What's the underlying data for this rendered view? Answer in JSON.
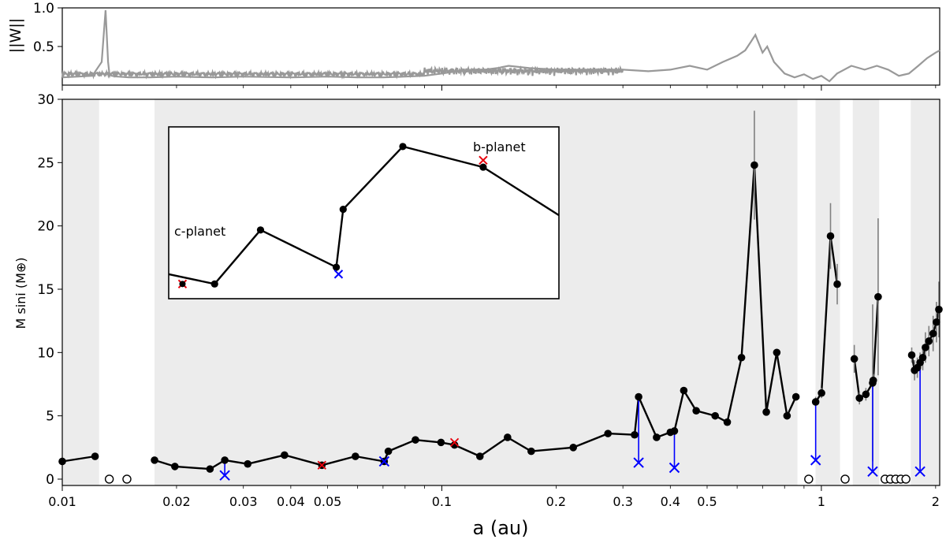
{
  "chart_data": [
    {
      "id": "window-function",
      "type": "line",
      "ylabel": "||W||",
      "ylim": [
        0,
        1.0
      ],
      "yticks": [
        0.5,
        1.0
      ],
      "ytick_labels": [
        "0.5",
        "1.0"
      ],
      "xscale": "log",
      "xlim": [
        0.01,
        2.05
      ],
      "line_color": "#999999",
      "series": [
        {
          "x": [
            0.01,
            0.011,
            0.012,
            0.0127,
            0.013,
            0.0132,
            0.0133,
            0.0135,
            0.014,
            0.015,
            0.017,
            0.02,
            0.025,
            0.03,
            0.04,
            0.05,
            0.06,
            0.07,
            0.08,
            0.09,
            0.1,
            0.11,
            0.12,
            0.13,
            0.14,
            0.15,
            0.17,
            0.2,
            0.25,
            0.3,
            0.35,
            0.4,
            0.45,
            0.5,
            0.55,
            0.6,
            0.63,
            0.65,
            0.67,
            0.7,
            0.72,
            0.75,
            0.8,
            0.85,
            0.9,
            0.95,
            1.0,
            1.05,
            1.1,
            1.2,
            1.3,
            1.4,
            1.5,
            1.6,
            1.7,
            1.8,
            1.9,
            2.0,
            2.05
          ],
          "y": [
            0.1,
            0.11,
            0.12,
            0.3,
            0.97,
            0.3,
            0.16,
            0.12,
            0.11,
            0.1,
            0.1,
            0.11,
            0.1,
            0.11,
            0.1,
            0.11,
            0.1,
            0.1,
            0.11,
            0.12,
            0.15,
            0.18,
            0.2,
            0.2,
            0.22,
            0.25,
            0.22,
            0.2,
            0.2,
            0.2,
            0.18,
            0.2,
            0.25,
            0.2,
            0.3,
            0.38,
            0.45,
            0.55,
            0.65,
            0.42,
            0.5,
            0.3,
            0.15,
            0.1,
            0.14,
            0.08,
            0.12,
            0.05,
            0.15,
            0.25,
            0.2,
            0.25,
            0.2,
            0.12,
            0.15,
            0.25,
            0.35,
            0.42,
            0.45
          ]
        }
      ]
    },
    {
      "id": "mass-vs-semimajor-axis",
      "type": "line",
      "xlabel": "a (au)",
      "ylabel": "M sini (M⊕)",
      "xscale": "log",
      "xlim": [
        0.01,
        2.05
      ],
      "ylim": [
        -0.5,
        30
      ],
      "yticks": [
        0,
        5,
        10,
        15,
        20,
        25,
        30
      ],
      "ytick_labels": [
        "0",
        "5",
        "10",
        "15",
        "20",
        "25",
        "30"
      ],
      "xticks": [
        0.01,
        0.02,
        0.03,
        0.04,
        0.05,
        0.1,
        0.2,
        0.3,
        0.4,
        0.5,
        1,
        2
      ],
      "xtick_labels": [
        "0.01",
        "0.02",
        "0.03",
        "0.04",
        "0.05",
        "0.1",
        "0.2",
        "0.3",
        "0.4",
        "0.5",
        "1",
        "2"
      ],
      "shaded_regions": [
        [
          0.01,
          0.0125
        ],
        [
          0.0175,
          0.865
        ],
        [
          0.965,
          1.12
        ],
        [
          1.21,
          1.42
        ],
        [
          1.72,
          2.05
        ]
      ],
      "shade_color": "#ececec",
      "segments": [
        {
          "x": [
            0.01,
            0.0122
          ],
          "y": [
            1.4,
            1.8
          ],
          "yerr": [
            0.1,
            0.1
          ]
        },
        {
          "x": [
            0.0175,
            0.0198,
            0.0245,
            0.0268,
            0.0308,
            0.0385,
            0.0483,
            0.0592,
            0.0705,
            0.0723,
            0.0852,
            0.0995,
            0.108,
            0.126,
            0.149,
            0.172,
            0.222,
            0.274,
            0.322,
            0.33,
            0.368,
            0.4,
            0.41,
            0.434,
            0.468,
            0.525,
            0.565,
            0.616,
            0.666,
            0.716,
            0.763,
            0.812,
            0.857
          ],
          "y": [
            1.5,
            1.0,
            0.8,
            1.5,
            1.2,
            1.9,
            1.1,
            1.8,
            1.4,
            2.2,
            3.1,
            2.9,
            2.7,
            1.8,
            3.3,
            2.2,
            2.5,
            3.6,
            3.5,
            6.5,
            3.3,
            3.7,
            3.8,
            7.0,
            5.4,
            5.0,
            4.5,
            9.6,
            24.8,
            5.3,
            10.0,
            5.0,
            6.5
          ],
          "yerr": [
            0.1,
            0.1,
            0.1,
            0.1,
            0.1,
            0.1,
            0.1,
            0.1,
            0.1,
            0.1,
            0.1,
            0.1,
            0.1,
            0.1,
            0.1,
            0.1,
            0.1,
            0.1,
            0.1,
            0.2,
            0.1,
            0.1,
            0.2,
            0.2,
            0.2,
            0.2,
            0.2,
            0.3,
            4.3,
            0.2,
            0.3,
            0.2,
            0.3
          ]
        },
        {
          "x": [
            0.966,
            1.001,
            1.057,
            1.101
          ],
          "y": [
            6.1,
            6.8,
            19.2,
            15.4
          ],
          "yerr": [
            0.4,
            0.4,
            2.6,
            1.6
          ]
        },
        {
          "x": [
            1.221,
            1.26,
            1.31,
            1.365,
            1.37,
            1.411
          ],
          "y": [
            9.5,
            6.4,
            6.7,
            7.6,
            7.8,
            14.4
          ],
          "yerr": [
            1.1,
            0.5,
            0.5,
            6.2,
            0.5,
            6.2
          ]
        },
        {
          "x": [
            1.73,
            1.76,
            1.79,
            1.82,
            1.85,
            1.88,
            1.92,
            1.97,
            2.01,
            2.04
          ],
          "y": [
            9.8,
            8.6,
            8.8,
            9.2,
            9.6,
            10.4,
            10.9,
            11.5,
            12.4,
            13.4
          ],
          "yerr": [
            0.6,
            0.8,
            0.8,
            0.8,
            1.0,
            1.2,
            1.2,
            1.4,
            1.6,
            2.2
          ]
        }
      ],
      "open_circles": {
        "x": [
          0.0133,
          0.0148,
          0.926,
          1.155,
          1.472,
          1.52,
          1.57,
          1.62,
          1.67
        ],
        "y": [
          0,
          0,
          0,
          0,
          0,
          0,
          0,
          0,
          0
        ]
      },
      "blue_crosses": {
        "x": [
          0.0268,
          0.0705,
          0.33,
          0.41,
          0.966,
          1.365,
          1.82
        ],
        "y": [
          0.3,
          1.4,
          1.3,
          0.9,
          1.5,
          0.6,
          0.6
        ],
        "connect_from_y": [
          1.5,
          1.4,
          6.5,
          3.8,
          6.1,
          7.8,
          9.2
        ]
      },
      "red_crosses": {
        "x": [
          0.0483,
          0.108
        ],
        "y": [
          1.1,
          2.9
        ]
      },
      "colors": {
        "line": "#000000",
        "errorbar": "#808080",
        "blue_cross": "#0000ff",
        "red_cross": "#e8000b"
      },
      "inset": {
        "annotations": [
          "c-planet",
          "b-planet"
        ],
        "x": [
          0.0,
          0.2,
          0.4,
          0.73,
          0.76,
          1.02,
          1.37,
          1.7
        ],
        "y": [
          1.1,
          1.0,
          1.55,
          1.17,
          1.76,
          2.4,
          2.19,
          1.7
        ],
        "blue_cross": {
          "x": 0.74,
          "y": 1.1
        },
        "red_cross_c": {
          "x": 0.06,
          "y": 1.0
        },
        "red_cross_b": {
          "x": 1.37,
          "y": 2.26
        },
        "xlim": [
          0.0,
          1.7
        ],
        "ylim": [
          0.85,
          2.6
        ]
      }
    }
  ]
}
